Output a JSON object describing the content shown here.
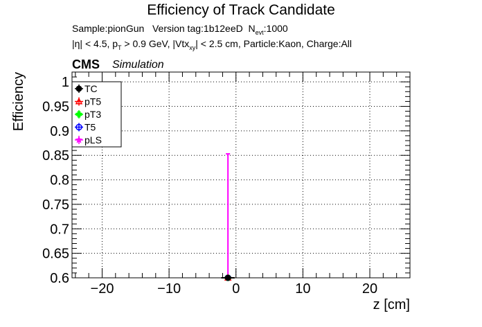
{
  "chart_data": {
    "type": "scatter",
    "title": "Efficiency of Track Candidate",
    "subtitle_line1": {
      "sample": "Sample:pionGun",
      "version": "Version tag:1b12eeD",
      "nevt_prefix": "N",
      "nevt_sub": "evt",
      "nevt_value": ":1000"
    },
    "subtitle_line2": {
      "part1": "|η| < 4.5, p",
      "pt_sub": "T",
      "part2": " > 0.9 GeV, |Vtx",
      "vtx_sub": "xy",
      "part3": "| < 2.5 cm, Particle:Kaon, Charge:All"
    },
    "cms_label": "CMS",
    "simulation_label": "Simulation",
    "xlabel": "z [cm]",
    "ylabel": "Efficiency",
    "xlim": [
      -24.5,
      26
    ],
    "ylim": [
      0.6,
      1.02
    ],
    "xticks": [
      -20,
      -10,
      0,
      10,
      20
    ],
    "xtick_labels": [
      "−20",
      "−10",
      "0",
      "10",
      "20"
    ],
    "yticks": [
      0.6,
      0.65,
      0.7,
      0.75,
      0.8,
      0.85,
      0.9,
      0.95,
      1.0
    ],
    "ytick_labels": [
      "0.6",
      "0.65",
      "0.7",
      "0.75",
      "0.8",
      "0.85",
      "0.9",
      "0.95",
      "1"
    ],
    "grid": true,
    "legend_position": "top-left",
    "series": [
      {
        "name": "TC",
        "color": "#000000",
        "marker": "filled-circle",
        "x": [
          -1.2
        ],
        "y": [
          0.6
        ],
        "yerr_high": [
          0.6
        ],
        "xerr": [
          1.0
        ]
      },
      {
        "name": "pT5",
        "color": "#ff0000",
        "marker": "open-triangle",
        "x": [
          -1.2
        ],
        "y": [
          0.6
        ],
        "yerr_high": [
          0.6
        ],
        "xerr": [
          1.0
        ]
      },
      {
        "name": "pT3",
        "color": "#00ff00",
        "marker": "filled-cross",
        "x": [
          -1.2
        ],
        "y": [
          0.6
        ],
        "yerr_high": [
          0.6
        ],
        "xerr": [
          1.0
        ]
      },
      {
        "name": "T5",
        "color": "#0000ff",
        "marker": "open-circle",
        "x": [
          -1.2
        ],
        "y": [
          0.6
        ],
        "yerr_high": [
          0.6
        ],
        "xerr": [
          1.0
        ]
      },
      {
        "name": "pLS",
        "color": "#ff00ff",
        "marker": "open-star",
        "x": [
          -1.2
        ],
        "y": [
          0.6
        ],
        "yerr_high": [
          0.853
        ],
        "xerr": [
          1.0
        ]
      }
    ]
  }
}
